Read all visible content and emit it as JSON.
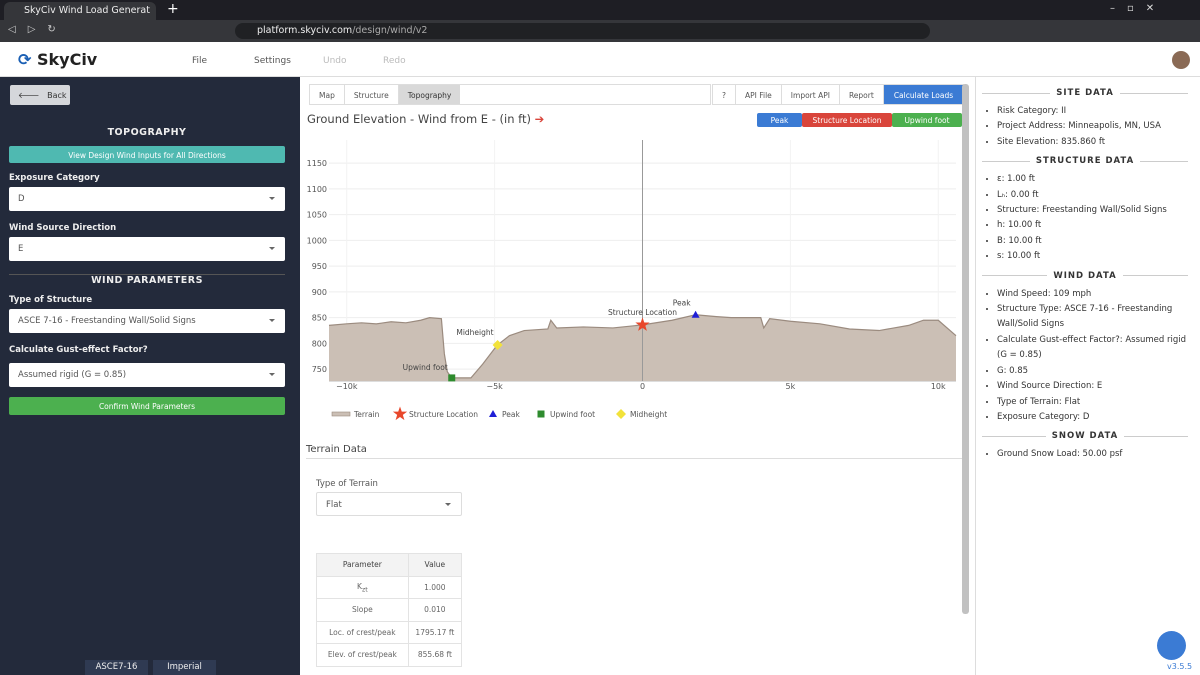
{
  "browser": {
    "tab_title": "SkyCiv Wind Load Generat",
    "url_host": "platform.skyciv.com",
    "url_path": "/design/wind/v2"
  },
  "app": {
    "logo": "SkyCiv",
    "menu": [
      "File",
      "Settings",
      "Undo",
      "Redo"
    ],
    "version": "v3.5.5"
  },
  "left_panel": {
    "back": "Back",
    "topography_heading": "TOPOGRAPHY",
    "view_button": "View Design Wind Inputs for All Directions",
    "exposure_label": "Exposure Category",
    "exposure_value": "D",
    "direction_label": "Wind Source Direction",
    "direction_value": "E",
    "wind_params_heading": "WIND PARAMETERS",
    "structure_label": "Type of Structure",
    "structure_value": "ASCE 7-16 - Freestanding Wall/Solid Signs",
    "gust_label": "Calculate Gust-effect Factor?",
    "gust_value": "Assumed rigid (G = 0.85)",
    "confirm_button": "Confirm Wind Parameters",
    "footer": [
      "ASCE7-16",
      "Imperial"
    ]
  },
  "tabs": [
    "Map",
    "Structure",
    "Topography"
  ],
  "toolbar": [
    "?",
    "API File",
    "Import API",
    "Report",
    "Calculate Loads"
  ],
  "chart_data": {
    "type": "area",
    "title": "Ground Elevation - Wind from E - (in ft)",
    "buttons": [
      "Peak",
      "Structure Location",
      "Upwind foot"
    ],
    "xlim": [
      -10600,
      10600
    ],
    "ylim": [
      727,
      1195
    ],
    "xticks": [
      {
        "value": -10000,
        "label": "−10k"
      },
      {
        "value": -5000,
        "label": "−5k"
      },
      0,
      {
        "value": 5000,
        "label": "5k"
      },
      {
        "value": 10000,
        "label": "10k"
      }
    ],
    "yticks": [
      750,
      800,
      850,
      900,
      950,
      1000,
      1050,
      1100,
      1150
    ],
    "grid": true,
    "series": [
      {
        "name": "Terrain",
        "color": "#cbbfb5",
        "x": [
          -10600,
          -10000,
          -9500,
          -9000,
          -8500,
          -8000,
          -7500,
          -7200,
          -6800,
          -6700,
          -6600,
          -6450,
          -5800,
          -5400,
          -5000,
          -4900,
          -4500,
          -4000,
          -3200,
          -3100,
          -2900,
          -2000,
          -1000,
          0,
          1000,
          1795.17,
          2500,
          3000,
          4000,
          4100,
          4300,
          5000,
          6000,
          7000,
          8000,
          9000,
          9500,
          10000,
          10600
        ],
        "values": [
          835,
          838,
          840,
          838,
          842,
          840,
          845,
          850,
          848,
          780,
          745,
          733,
          733,
          760,
          790,
          797,
          815,
          825,
          828,
          845,
          830,
          832,
          830,
          836,
          845,
          855.68,
          852,
          850,
          850,
          830,
          848,
          843,
          838,
          828,
          825,
          835,
          845,
          845,
          815
        ]
      },
      {
        "name": "Structure Location",
        "color": "#e8472b",
        "x": [
          0
        ],
        "values": [
          836
        ]
      },
      {
        "name": "Peak",
        "color": "#1f1fd6",
        "x": [
          1795.17
        ],
        "values": [
          855.68
        ]
      },
      {
        "name": "Upwind foot",
        "color": "#2e8b2e",
        "x": [
          -6450
        ],
        "values": [
          733
        ]
      },
      {
        "name": "Midheight",
        "color": "#f2e23a",
        "x": [
          -4900
        ],
        "values": [
          797
        ]
      }
    ]
  },
  "terrain_data": {
    "heading": "Terrain Data",
    "type_label": "Type of Terrain",
    "type_value": "Flat",
    "table": {
      "header": [
        "Parameter",
        "Value"
      ],
      "rows": [
        [
          {
            "base": "K",
            "sub": "zt"
          },
          "1.000"
        ],
        [
          "Slope",
          "0.010"
        ],
        [
          "Loc. of crest/peak",
          "1795.17 ft"
        ],
        [
          "Elev. of crest/peak",
          "855.68 ft"
        ]
      ]
    }
  },
  "right_panel": [
    {
      "heading": "SITE DATA",
      "items": [
        "Risk Category: II",
        "Project Address: Minneapolis, MN, USA",
        "Site Elevation: 835.860 ft"
      ]
    },
    {
      "heading": "STRUCTURE DATA",
      "items": [
        "ε: 1.00 ft",
        "Lₕ: 0.00 ft",
        "Structure: Freestanding Wall/Solid Signs",
        "h: 10.00 ft",
        "B: 10.00 ft",
        "s: 10.00 ft"
      ]
    },
    {
      "heading": "WIND DATA",
      "items": [
        "Wind Speed: 109 mph",
        "Structure Type: ASCE 7-16 - Freestanding Wall/Solid Signs",
        "Calculate Gust-effect Factor?: Assumed rigid (G = 0.85)",
        "G: 0.85",
        "Wind Source Direction: E",
        "Type of Terrain: Flat",
        "Exposure Category: D"
      ]
    },
    {
      "heading": "SNOW DATA",
      "items": [
        "Ground Snow Load: 50.00 psf"
      ]
    }
  ]
}
